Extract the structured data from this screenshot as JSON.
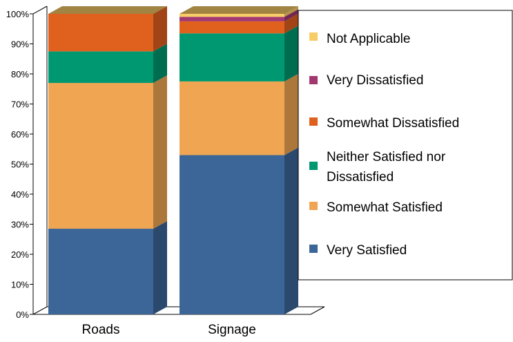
{
  "chart_data": {
    "type": "bar",
    "stacked": true,
    "percent": true,
    "three_d": true,
    "categories": [
      "Roads",
      "Signage"
    ],
    "ylim": [
      0,
      100
    ],
    "yticks": [
      "0%",
      "10%",
      "20%",
      "30%",
      "40%",
      "50%",
      "60%",
      "70%",
      "80%",
      "90%",
      "100%"
    ],
    "grid": false,
    "legend_position": "right",
    "series": [
      {
        "name": "Very Satisfied",
        "color": "#3C6698",
        "values": [
          28.5,
          53
        ]
      },
      {
        "name": "Somewhat Satisfied",
        "color": "#EFA552",
        "values": [
          48.5,
          24.5
        ]
      },
      {
        "name": "Neither Satisfied nor Dissatisfied",
        "color": "#009870",
        "values": [
          10.5,
          16
        ]
      },
      {
        "name": "Somewhat Dissatisfied",
        "color": "#E0601E",
        "values": [
          12.5,
          4
        ]
      },
      {
        "name": "Very Dissatisfied",
        "color": "#A13870",
        "values": [
          0,
          1.5
        ]
      },
      {
        "name": "Not Applicable",
        "color": "#F8CC66",
        "values": [
          0,
          1
        ]
      }
    ]
  }
}
